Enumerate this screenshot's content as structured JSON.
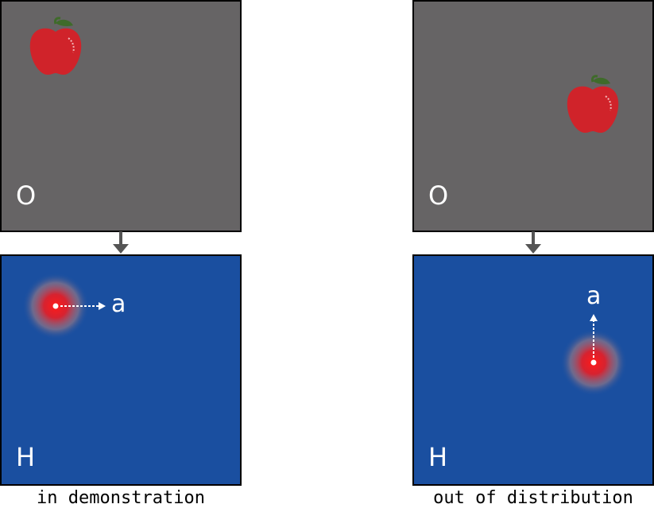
{
  "panels": [
    {
      "observation_label": "O",
      "heatmap_label": "H",
      "action_label": "a",
      "caption": "in demonstration"
    },
    {
      "observation_label": "O",
      "heatmap_label": "H",
      "action_label": "a",
      "caption": "out of distribution"
    }
  ],
  "colors": {
    "observation_bg": "#666465",
    "heatmap_bg": "#1a4fa0",
    "apple": "#d0232a",
    "hotspot": "#e0202a",
    "arrow": "#555555"
  }
}
